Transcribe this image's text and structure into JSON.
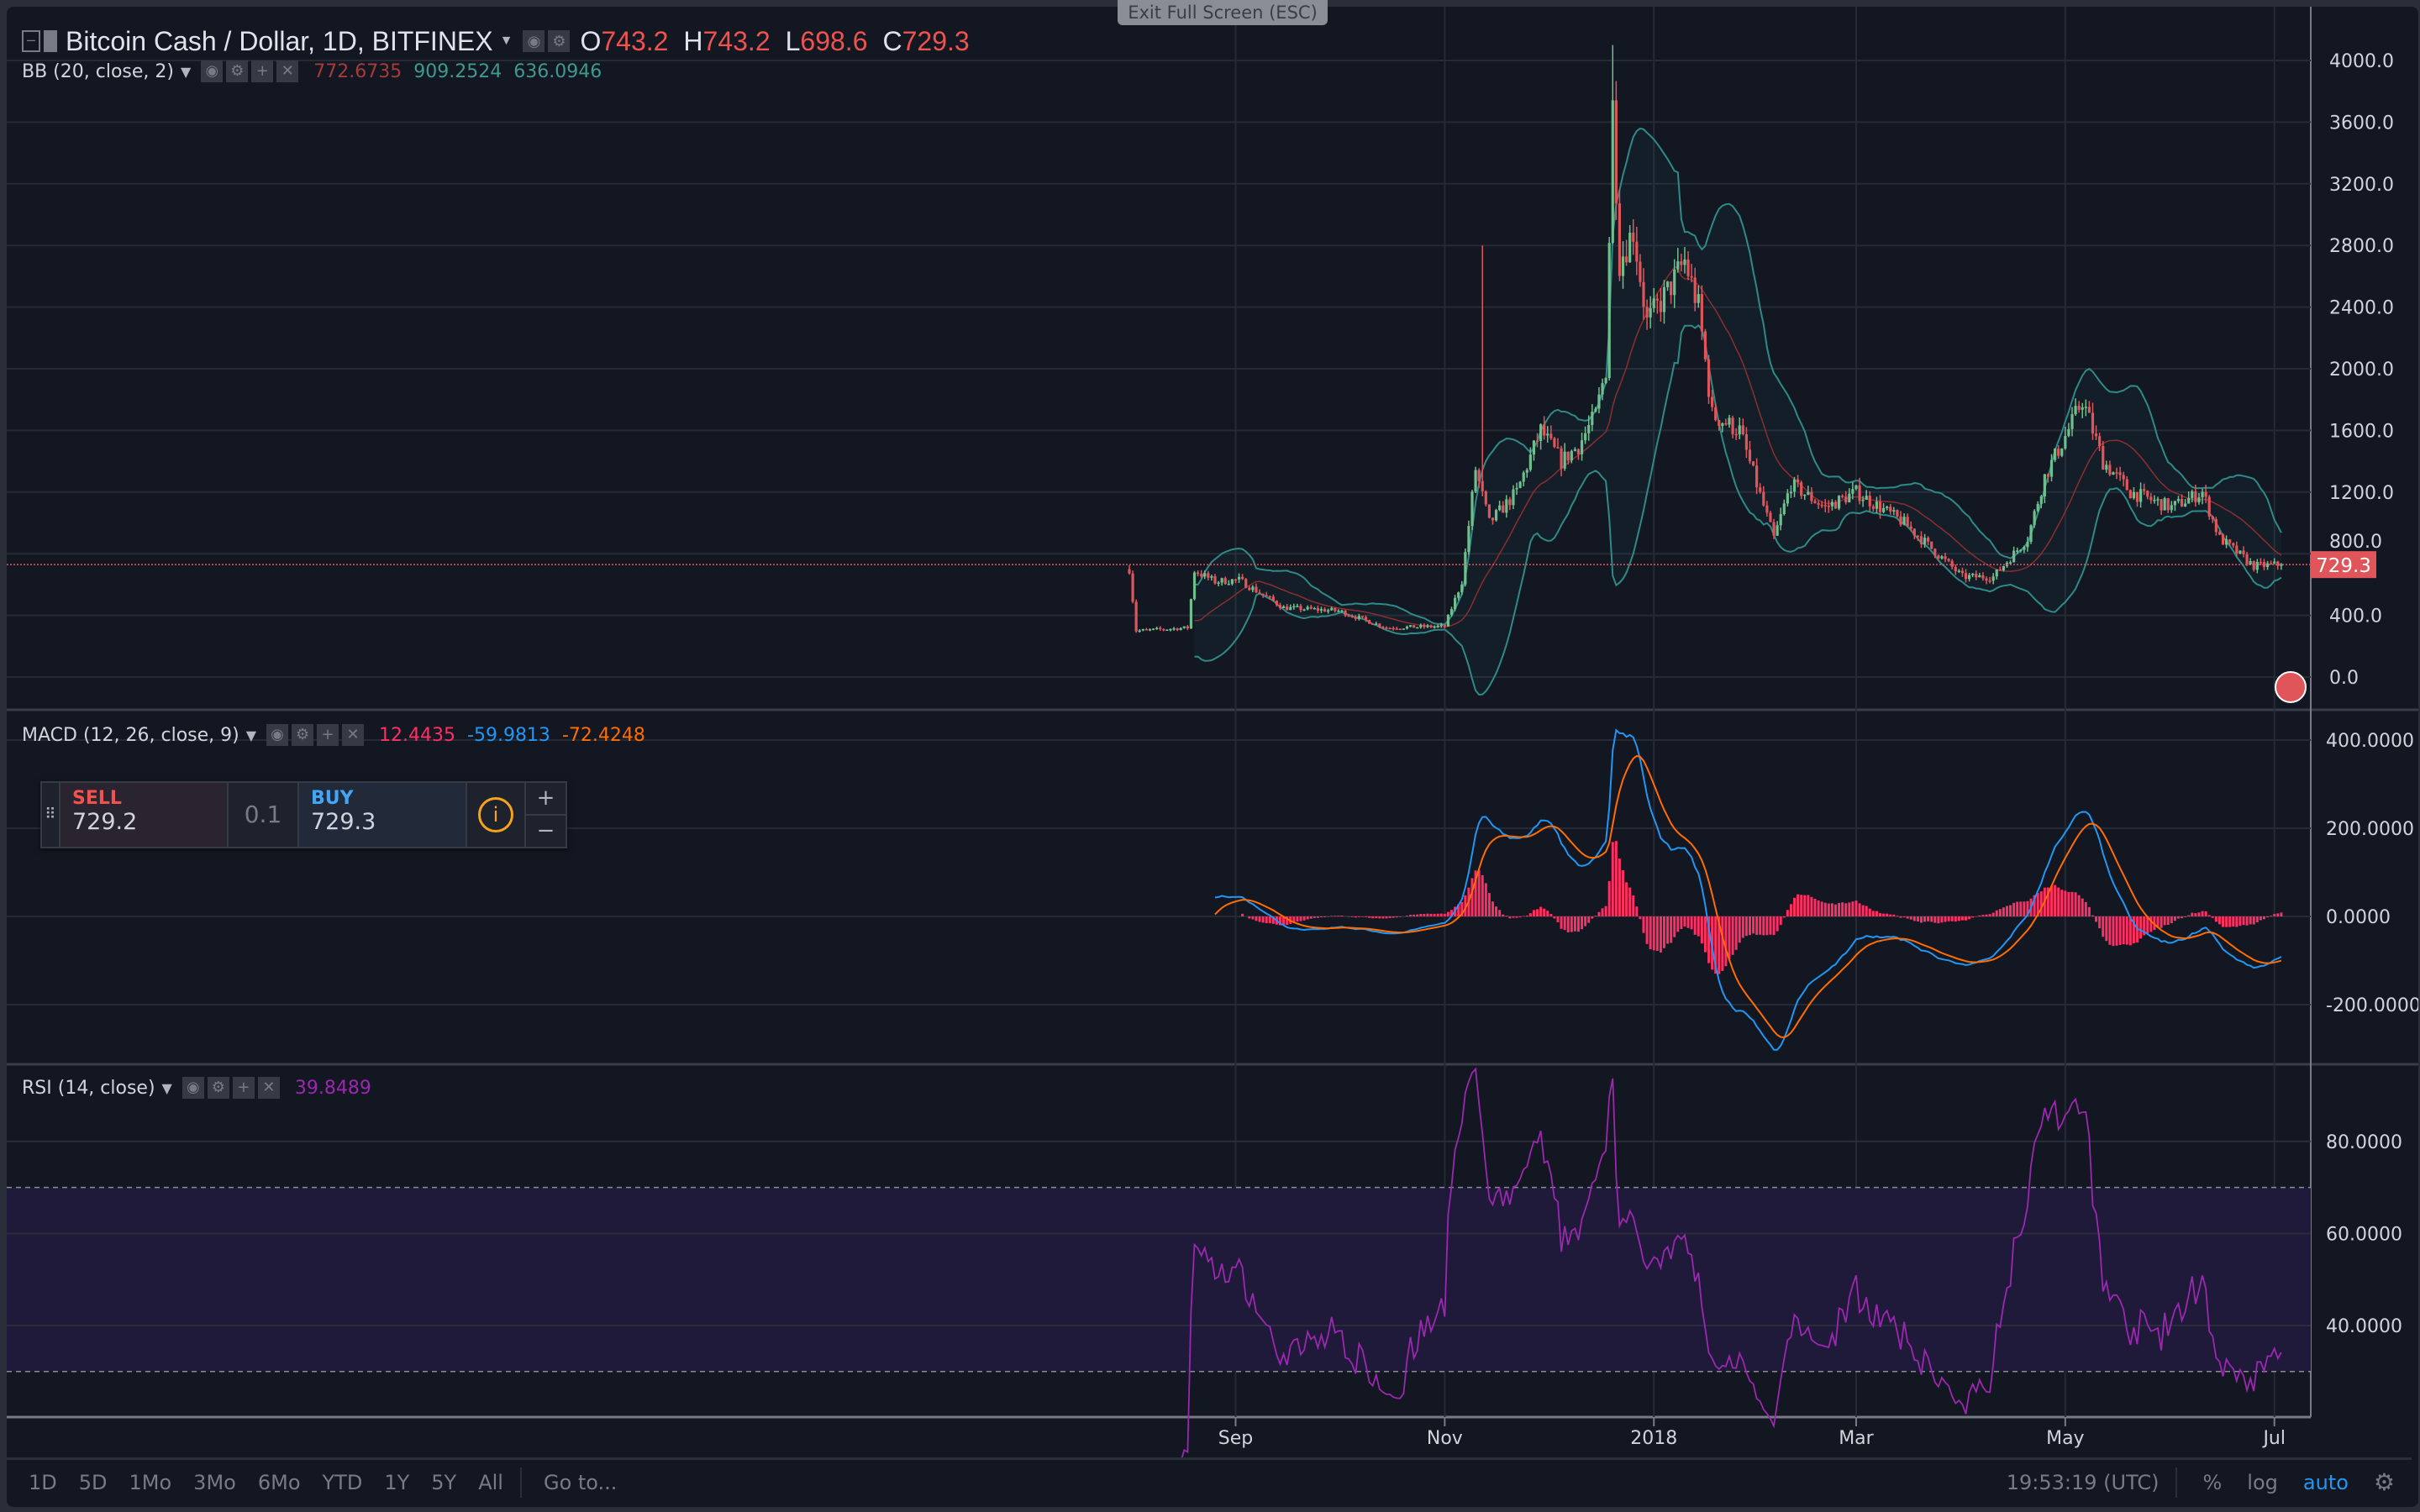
{
  "header": {
    "symbol_title": "Bitcoin Cash / Dollar, 1D, BITFINEX",
    "ohlc": {
      "o_label": "O",
      "o": "743.2",
      "h_label": "H",
      "h": "743.2",
      "l_label": "L",
      "l": "698.6",
      "c_label": "C",
      "c": "729.3"
    }
  },
  "exit_fullscreen": "Exit Full Screen (ESC)",
  "indicators": {
    "bb": {
      "label": "BB (20, close, 2)",
      "values": [
        "772.6735",
        "909.2524",
        "636.0946"
      ],
      "colors": [
        "#a83a3a",
        "#3e9a8e",
        "#3e9a8e"
      ]
    },
    "macd": {
      "label": "MACD (12, 26, close, 9)",
      "values": [
        "12.4435",
        "-59.9813",
        "-72.4248"
      ],
      "colors": [
        "#ff2e63",
        "#2196f3",
        "#ff6d00"
      ]
    },
    "rsi": {
      "label": "RSI (14, close)",
      "values": [
        "39.8489"
      ],
      "colors": [
        "#9c27b0"
      ]
    }
  },
  "trade_panel": {
    "sell_label": "SELL",
    "sell_price": "729.2",
    "quantity": "0.1",
    "buy_label": "BUY",
    "buy_price": "729.3",
    "plus": "+",
    "minus": "−",
    "drag": "⠿",
    "info": "i"
  },
  "price_axis": {
    "ticks": [
      "0.0",
      "400.0",
      "800.0",
      "1200.0",
      "1600.0",
      "2000.0",
      "2400.0",
      "2800.0",
      "3200.0",
      "3600.0",
      "4000.0"
    ],
    "last_price": "729.3",
    "last_color": "#e0555a"
  },
  "macd_axis": {
    "ticks": [
      "400.0000",
      "200.0000",
      "0.0000",
      "-200.0000"
    ]
  },
  "rsi_axis": {
    "ticks": [
      "80.0000",
      "60.0000",
      "40.0000"
    ],
    "bands": [
      30,
      70
    ]
  },
  "time_axis": {
    "ticks": [
      {
        "label": "Sep",
        "date": "2017-09-01"
      },
      {
        "label": "Nov",
        "date": "2017-11-01"
      },
      {
        "label": "2018",
        "date": "2018-01-01"
      },
      {
        "label": "Mar",
        "date": "2018-03-01"
      },
      {
        "label": "May",
        "date": "2018-05-01"
      },
      {
        "label": "Jul",
        "date": "2018-07-01"
      }
    ]
  },
  "bottom_bar": {
    "timeframes": [
      "1D",
      "5D",
      "1Mo",
      "3Mo",
      "6Mo",
      "YTD",
      "1Y",
      "5Y",
      "All"
    ],
    "goto": "Go to...",
    "clock": "19:53:19 (UTC)",
    "percent": "%",
    "log": "log",
    "auto": "auto"
  },
  "chart_data": {
    "type": "candlestick",
    "colors": {
      "up": "#6fbf8e",
      "down": "#e0555a",
      "bb_band": "#2e8a86",
      "bb_basis": "#8b2e2e",
      "macd": "#2196f3",
      "signal": "#ff6d00",
      "hist": "#ff2e63",
      "rsi": "#9c27b0"
    },
    "close_keypoints": [
      [
        "2017-08-01",
        700
      ],
      [
        "2017-08-03",
        300
      ],
      [
        "2017-08-18",
        320
      ],
      [
        "2017-08-20",
        690
      ],
      [
        "2017-08-26",
        620
      ],
      [
        "2017-09-02",
        630
      ],
      [
        "2017-09-15",
        450
      ],
      [
        "2017-10-01",
        430
      ],
      [
        "2017-10-15",
        320
      ],
      [
        "2017-11-01",
        330
      ],
      [
        "2017-11-06",
        620
      ],
      [
        "2017-11-10",
        1350
      ],
      [
        "2017-11-14",
        1000
      ],
      [
        "2017-11-22",
        1200
      ],
      [
        "2017-11-29",
        1600
      ],
      [
        "2017-12-05",
        1400
      ],
      [
        "2017-12-10",
        1500
      ],
      [
        "2017-12-15",
        1700
      ],
      [
        "2017-12-18",
        2000
      ],
      [
        "2017-12-20",
        3700
      ],
      [
        "2017-12-22",
        2700
      ],
      [
        "2017-12-26",
        2900
      ],
      [
        "2017-12-30",
        2300
      ],
      [
        "2018-01-05",
        2500
      ],
      [
        "2018-01-10",
        2700
      ],
      [
        "2018-01-14",
        2400
      ],
      [
        "2018-01-18",
        1700
      ],
      [
        "2018-01-26",
        1600
      ],
      [
        "2018-02-05",
        900
      ],
      [
        "2018-02-10",
        1250
      ],
      [
        "2018-02-20",
        1100
      ],
      [
        "2018-03-01",
        1200
      ],
      [
        "2018-03-15",
        1000
      ],
      [
        "2018-04-01",
        650
      ],
      [
        "2018-04-10",
        650
      ],
      [
        "2018-04-20",
        900
      ],
      [
        "2018-04-25",
        1300
      ],
      [
        "2018-05-03",
        1650
      ],
      [
        "2018-05-06",
        1800
      ],
      [
        "2018-05-12",
        1400
      ],
      [
        "2018-05-20",
        1200
      ],
      [
        "2018-06-01",
        1100
      ],
      [
        "2018-06-10",
        1200
      ],
      [
        "2018-06-15",
        900
      ],
      [
        "2018-06-25",
        720
      ],
      [
        "2018-07-03",
        729.3
      ]
    ],
    "price_range": [
      0,
      4000
    ],
    "macd_range": [
      -300,
      450
    ],
    "rsi_range": [
      20,
      95
    ],
    "grid": true
  }
}
